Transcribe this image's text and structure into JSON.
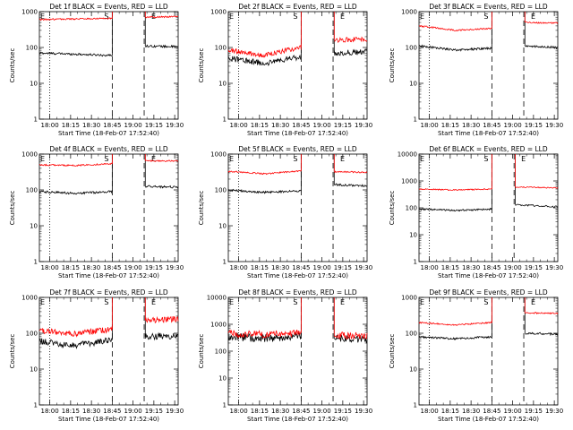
{
  "figure": {
    "subtitle_text": "Start Time (18-Feb-07 17:52:40)",
    "ylabel_text": "Counts/sec",
    "time_ticks": [
      "18:00",
      "18:15",
      "18:30",
      "18:45",
      "19:00",
      "19:15",
      "19:30"
    ],
    "event_markers": [
      {
        "label": "E",
        "time_min": 7.5,
        "style": "dotted"
      },
      {
        "label": "S",
        "time_min": 52.5,
        "style": "dashed"
      },
      {
        "label": "E",
        "time_min": 75.5,
        "style": "dashed"
      },
      {
        "label": "E",
        "time_min": 68.5,
        "style": "dashed"
      }
    ],
    "colors": {
      "events": "#000000",
      "lld": "#ff0000",
      "axes": "#000000"
    }
  },
  "chart_data": [
    {
      "type": "line",
      "title": "Det 1f BLACK = Events, RED = LLD",
      "xlabel": "Start Time (18-Feb-07 17:52:40)",
      "ylabel": "Counts/sec",
      "x_range_min": [
        0,
        100
      ],
      "ylim": [
        1,
        1000
      ],
      "yscale": "log",
      "y_ticks": [
        "1000",
        "100",
        "10",
        "1"
      ],
      "x_ticks": [
        "18:00",
        "18:15",
        "18:30",
        "18:45",
        "19:00",
        "19:15",
        "19:30"
      ],
      "markers": [
        {
          "label": "E",
          "x_min": 7.5
        },
        {
          "label": "S",
          "x_min": 52.5
        },
        {
          "label": "E",
          "x_min": 75.5
        }
      ],
      "series": [
        {
          "name": "Events",
          "color": "#000000",
          "pre": [
            70,
            60
          ],
          "post": [
            110,
            105
          ],
          "noise": 0.03
        },
        {
          "name": "LLD",
          "color": "#ff0000",
          "pre": [
            600,
            650
          ],
          "post": [
            700,
            730
          ],
          "noise": 0.02
        }
      ]
    },
    {
      "type": "line",
      "title": "Det 2f BLACK = Events, RED = LLD",
      "xlabel": "Start Time (18-Feb-07 17:52:40)",
      "ylabel": "Counts/sec",
      "x_range_min": [
        0,
        100
      ],
      "ylim": [
        1,
        1000
      ],
      "yscale": "log",
      "y_ticks": [
        "1000",
        "100",
        "10",
        "1"
      ],
      "x_ticks": [
        "18:00",
        "18:15",
        "18:30",
        "18:45",
        "19:00",
        "19:15",
        "19:30"
      ],
      "markers": [
        {
          "label": "E",
          "x_min": 7.5
        },
        {
          "label": "S",
          "x_min": 52.5
        },
        {
          "label": "E",
          "x_min": 75.5
        }
      ],
      "series": [
        {
          "name": "Events",
          "color": "#000000",
          "pre": [
            50,
            35,
            55
          ],
          "post": [
            70,
            75
          ],
          "noise": 0.08
        },
        {
          "name": "LLD",
          "color": "#ff0000",
          "pre": [
            85,
            60,
            100
          ],
          "post": [
            160,
            170
          ],
          "noise": 0.07
        }
      ]
    },
    {
      "type": "line",
      "title": "Det 3f BLACK = Events, RED = LLD",
      "xlabel": "Start Time (18-Feb-07 17:52:40)",
      "ylabel": "Counts/sec",
      "x_range_min": [
        0,
        100
      ],
      "ylim": [
        1,
        1000
      ],
      "yscale": "log",
      "y_ticks": [
        "1000",
        "100",
        "10",
        "1"
      ],
      "x_ticks": [
        "18:00",
        "18:15",
        "18:30",
        "18:45",
        "19:00",
        "19:15",
        "19:30"
      ],
      "markers": [
        {
          "label": "E",
          "x_min": 7.5
        },
        {
          "label": "S",
          "x_min": 52.5
        },
        {
          "label": "E",
          "x_min": 75.5
        }
      ],
      "series": [
        {
          "name": "Events",
          "color": "#000000",
          "pre": [
            110,
            85,
            95
          ],
          "post": [
            110,
            100
          ],
          "noise": 0.03
        },
        {
          "name": "LLD",
          "color": "#ff0000",
          "pre": [
            400,
            300,
            340
          ],
          "post": [
            500,
            480
          ],
          "noise": 0.02
        }
      ]
    },
    {
      "type": "line",
      "title": "Det 4f BLACK = Events, RED = LLD",
      "xlabel": "Start Time (18-Feb-07 17:52:40)",
      "ylabel": "Counts/sec",
      "x_range_min": [
        0,
        100
      ],
      "ylim": [
        1,
        1000
      ],
      "yscale": "log",
      "y_ticks": [
        "1000",
        "100",
        "10",
        "1"
      ],
      "x_ticks": [
        "18:00",
        "18:15",
        "18:30",
        "18:45",
        "19:00",
        "19:15",
        "19:30"
      ],
      "markers": [
        {
          "label": "E",
          "x_min": 7.5
        },
        {
          "label": "S",
          "x_min": 52.5
        },
        {
          "label": "E",
          "x_min": 75.5
        }
      ],
      "series": [
        {
          "name": "Events",
          "color": "#000000",
          "pre": [
            90,
            80,
            90
          ],
          "post": [
            125,
            120
          ],
          "noise": 0.03
        },
        {
          "name": "LLD",
          "color": "#ff0000",
          "pre": [
            500,
            480,
            540
          ],
          "post": [
            650,
            640
          ],
          "noise": 0.02
        }
      ]
    },
    {
      "type": "line",
      "title": "Det 5f BLACK = Events, RED = LLD",
      "xlabel": "Start Time (18-Feb-07 17:52:40)",
      "ylabel": "Counts/sec",
      "x_range_min": [
        0,
        100
      ],
      "ylim": [
        1,
        1000
      ],
      "yscale": "log",
      "y_ticks": [
        "1000",
        "100",
        "10",
        "1"
      ],
      "x_ticks": [
        "18:00",
        "18:15",
        "18:30",
        "18:45",
        "19:00",
        "19:15",
        "19:30"
      ],
      "markers": [
        {
          "label": "E",
          "x_min": 7.5
        },
        {
          "label": "S",
          "x_min": 52.5
        },
        {
          "label": "E",
          "x_min": 75.5
        }
      ],
      "series": [
        {
          "name": "Events",
          "color": "#000000",
          "pre": [
            100,
            85,
            95
          ],
          "post": [
            140,
            130
          ],
          "noise": 0.03
        },
        {
          "name": "LLD",
          "color": "#ff0000",
          "pre": [
            330,
            280,
            340
          ],
          "post": [
            320,
            310
          ],
          "noise": 0.02
        }
      ]
    },
    {
      "type": "line",
      "title": "Det 6f BLACK = Events, RED = LLD",
      "xlabel": "Start Time (18-Feb-07 17:52:40)",
      "ylabel": "Counts/sec",
      "x_range_min": [
        0,
        100
      ],
      "ylim": [
        1,
        10000
      ],
      "yscale": "log",
      "y_ticks": [
        "10000",
        "1000",
        "100",
        "10",
        "1"
      ],
      "x_ticks": [
        "18:00",
        "18:15",
        "18:30",
        "18:45",
        "19:00",
        "19:15",
        "19:30"
      ],
      "markers": [
        {
          "label": "E",
          "x_min": 7.5
        },
        {
          "label": "S",
          "x_min": 52.5
        },
        {
          "label": "E",
          "x_min": 68.5
        }
      ],
      "series": [
        {
          "name": "Events",
          "color": "#000000",
          "pre": [
            90,
            80,
            90
          ],
          "post": [
            130,
            110
          ],
          "noise": 0.03
        },
        {
          "name": "LLD",
          "color": "#ff0000",
          "pre": [
            500,
            460,
            500
          ],
          "post": [
            600,
            550
          ],
          "noise": 0.02
        }
      ]
    },
    {
      "type": "line",
      "title": "Det 7f BLACK = Events, RED = LLD",
      "xlabel": "Start Time (18-Feb-07 17:52:40)",
      "ylabel": "Counts/sec",
      "x_range_min": [
        0,
        100
      ],
      "ylim": [
        1,
        1000
      ],
      "yscale": "log",
      "y_ticks": [
        "1000",
        "100",
        "10",
        "1"
      ],
      "x_ticks": [
        "18:00",
        "18:15",
        "18:30",
        "18:45",
        "19:00",
        "19:15",
        "19:30"
      ],
      "markers": [
        {
          "label": "E",
          "x_min": 7.5
        },
        {
          "label": "S",
          "x_min": 52.5
        },
        {
          "label": "E",
          "x_min": 75.5
        }
      ],
      "series": [
        {
          "name": "Events",
          "color": "#000000",
          "pre": [
            60,
            45,
            65
          ],
          "post": [
            80,
            85
          ],
          "noise": 0.09
        },
        {
          "name": "LLD",
          "color": "#ff0000",
          "pre": [
            120,
            95,
            130
          ],
          "post": [
            230,
            250
          ],
          "noise": 0.08
        }
      ]
    },
    {
      "type": "line",
      "title": "Det 8f BLACK = Events, RED = LLD",
      "xlabel": "Start Time (18-Feb-07 17:52:40)",
      "ylabel": "Counts/sec",
      "x_range_min": [
        0,
        100
      ],
      "ylim": [
        1,
        10000
      ],
      "yscale": "log",
      "y_ticks": [
        "10000",
        "1000",
        "100",
        "10",
        "1"
      ],
      "x_ticks": [
        "18:00",
        "18:15",
        "18:30",
        "18:45",
        "19:00",
        "19:15",
        "19:30"
      ],
      "markers": [
        {
          "label": "E",
          "x_min": 7.5
        },
        {
          "label": "S",
          "x_min": 52.5
        },
        {
          "label": "E",
          "x_min": 75.5
        }
      ],
      "series": [
        {
          "name": "Events",
          "color": "#000000",
          "pre": [
            350,
            300,
            380
          ],
          "post": [
            300,
            290
          ],
          "noise": 0.15
        },
        {
          "name": "LLD",
          "color": "#ff0000",
          "pre": [
            450,
            420,
            480
          ],
          "post": [
            380,
            380
          ],
          "noise": 0.13
        }
      ]
    },
    {
      "type": "line",
      "title": "Det 9f BLACK = Events, RED = LLD",
      "xlabel": "Start Time (18-Feb-07 17:52:40)",
      "ylabel": "Counts/sec",
      "x_range_min": [
        0,
        100
      ],
      "ylim": [
        1,
        1000
      ],
      "yscale": "log",
      "y_ticks": [
        "1000",
        "100",
        "10",
        "1"
      ],
      "x_ticks": [
        "18:00",
        "18:15",
        "18:30",
        "18:45",
        "19:00",
        "19:15",
        "19:30"
      ],
      "markers": [
        {
          "label": "E",
          "x_min": 7.5
        },
        {
          "label": "S",
          "x_min": 52.5
        },
        {
          "label": "E",
          "x_min": 75.5
        }
      ],
      "series": [
        {
          "name": "Events",
          "color": "#000000",
          "pre": [
            80,
            70,
            80
          ],
          "post": [
            100,
            95
          ],
          "noise": 0.03
        },
        {
          "name": "LLD",
          "color": "#ff0000",
          "pre": [
            200,
            170,
            200
          ],
          "post": [
            370,
            360
          ],
          "noise": 0.02
        }
      ]
    }
  ]
}
